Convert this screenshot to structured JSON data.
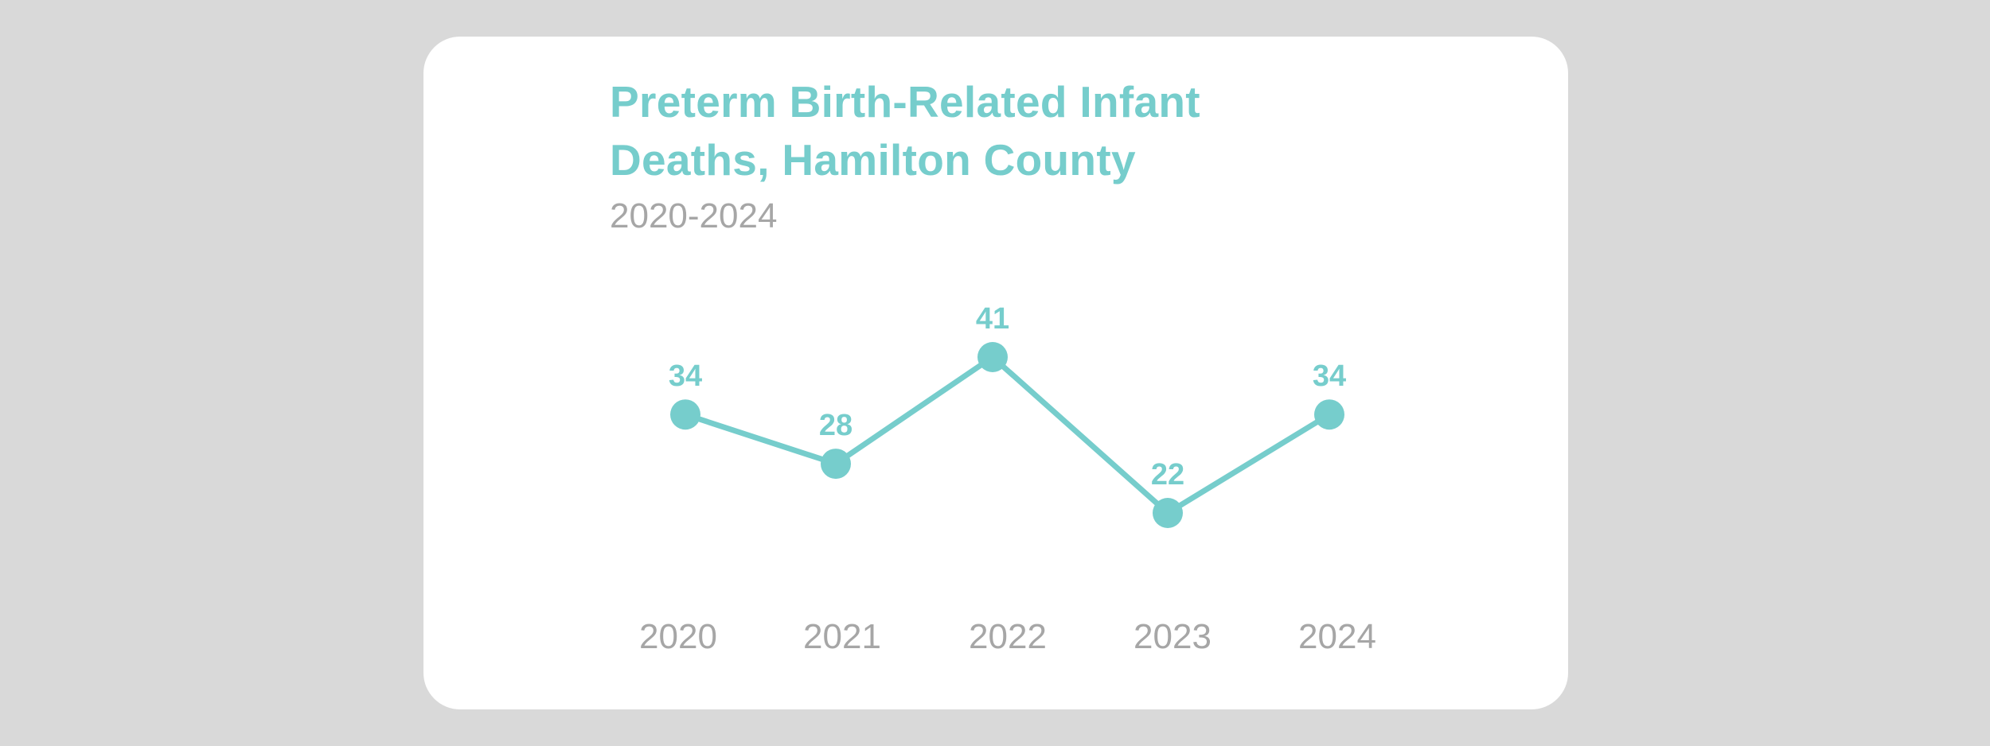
{
  "colors": {
    "background": "#d9d9d9",
    "card": "#ffffff",
    "accent": "#76cdcc",
    "muted": "#a6a6a6"
  },
  "chart_data": {
    "type": "line",
    "title": "Preterm Birth-Related Infant Deaths, Hamilton County",
    "subtitle": "2020-2024",
    "xlabel": "",
    "ylabel": "",
    "categories": [
      "2020",
      "2021",
      "2022",
      "2023",
      "2024"
    ],
    "series": [
      {
        "values": [
          34,
          28,
          41,
          22,
          34
        ]
      }
    ],
    "ylim": [
      22,
      41
    ],
    "grid": false,
    "data_labels": true
  }
}
